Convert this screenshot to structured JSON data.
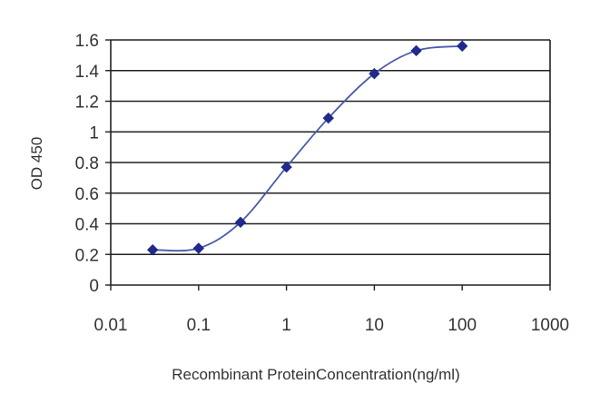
{
  "chart_data": {
    "type": "line",
    "title": "",
    "xlabel": "Recombinant ProteinConcentration(ng/ml)",
    "ylabel": "OD 450",
    "x_scale": "log",
    "xlim": [
      0.01,
      1000
    ],
    "ylim": [
      0,
      1.6
    ],
    "x_ticks": [
      "0.01",
      "0.1",
      "1",
      "10",
      "100",
      "1000"
    ],
    "y_ticks": [
      "0",
      "0.2",
      "0.4",
      "0.6",
      "0.8",
      "1",
      "1.2",
      "1.4",
      "1.6"
    ],
    "grid": "horizontal",
    "legend": "none",
    "series": [
      {
        "x": [
          0.03,
          0.1,
          0.3,
          1,
          3,
          10,
          30,
          100
        ],
        "y": [
          0.23,
          0.24,
          0.41,
          0.77,
          1.09,
          1.38,
          1.53,
          1.56
        ],
        "color": "#1f2a8c"
      }
    ]
  }
}
